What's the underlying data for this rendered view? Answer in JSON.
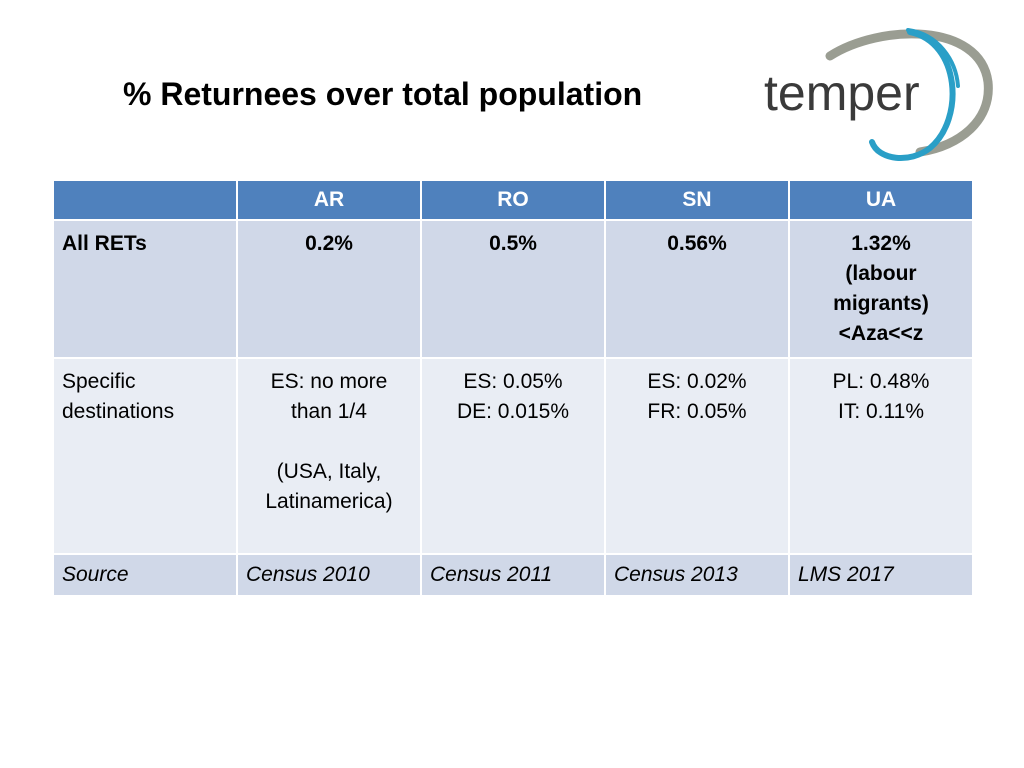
{
  "title": "% Returnees over total population",
  "logo": {
    "text": "temper"
  },
  "table": {
    "headers": [
      "",
      "AR",
      "RO",
      "SN",
      "UA"
    ],
    "row_all": {
      "label": "All RETs",
      "ar": "0.2%",
      "ro": "0.5%",
      "sn": "0.56%",
      "ua": [
        "1.32%",
        "(labour",
        "migrants)",
        "<Aza<<z"
      ]
    },
    "row_specific": {
      "label": [
        "Specific",
        "destinations"
      ],
      "ar": [
        "ES: no more",
        "than  1/4",
        "",
        "(USA, Italy,",
        "Latinamerica)"
      ],
      "ro": [
        "ES: 0.05%",
        "DE: 0.015%"
      ],
      "sn": [
        "ES: 0.02%",
        "FR: 0.05%"
      ],
      "ua": [
        "PL: 0.48%",
        "IT: 0.11%"
      ]
    },
    "row_source": {
      "label": "Source",
      "ar": "Census 2010",
      "ro": "Census 2011",
      "sn": "Census 2013",
      "ua": "LMS 2017"
    }
  },
  "colors": {
    "header_bg": "#4f81bd",
    "row_dark": "#d0d8e8",
    "row_light": "#e9edf4",
    "logo_teal": "#2a9fc7",
    "logo_grey": "#9a9d92"
  }
}
